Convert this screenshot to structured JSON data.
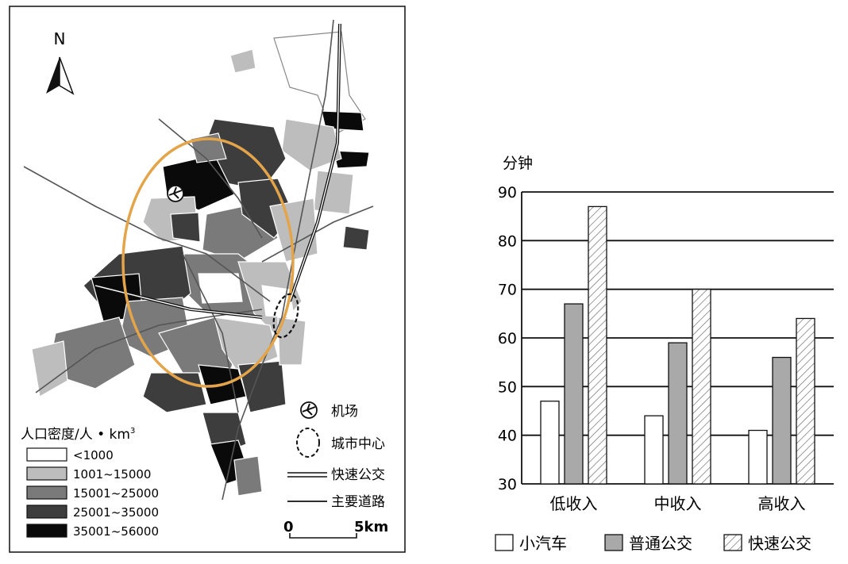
{
  "map": {
    "north_label": "N",
    "legend": {
      "title_main": "人口密度/人 • km",
      "title_sup": "3",
      "classes": [
        {
          "label": "<1000",
          "color": "#ffffff"
        },
        {
          "label": "1001~15000",
          "color": "#bdbdbd"
        },
        {
          "label": "15001~25000",
          "color": "#7a7a7a"
        },
        {
          "label": "25001~35000",
          "color": "#3d3d3d"
        },
        {
          "label": "35001~56000",
          "color": "#0a0a0a"
        }
      ]
    },
    "symbols": {
      "airport": "机场",
      "city_center": "城市中心",
      "rapid_transit": "快速公交",
      "main_road": "主要道路"
    },
    "scale_bar": {
      "start": "0",
      "end": "5km"
    },
    "colors": {
      "rapid_transit_ellipse": "#e3a44a",
      "frame": "#111111"
    }
  },
  "chart_data": {
    "type": "bar",
    "ylabel": "分钟",
    "ylim": [
      30,
      90
    ],
    "yticks": [
      "30",
      "40",
      "50",
      "60",
      "70",
      "80",
      "90"
    ],
    "categories": [
      "低收入",
      "中收入",
      "高收入"
    ],
    "series": [
      {
        "name": "小汽车",
        "values": [
          47,
          44,
          41
        ],
        "fill": "white"
      },
      {
        "name": "普通公交",
        "values": [
          67,
          59,
          56
        ],
        "fill": "gray"
      },
      {
        "name": "快速公交",
        "values": [
          87,
          70,
          64
        ],
        "fill": "hatch"
      }
    ],
    "grid": true,
    "legend_position": "bottom"
  }
}
